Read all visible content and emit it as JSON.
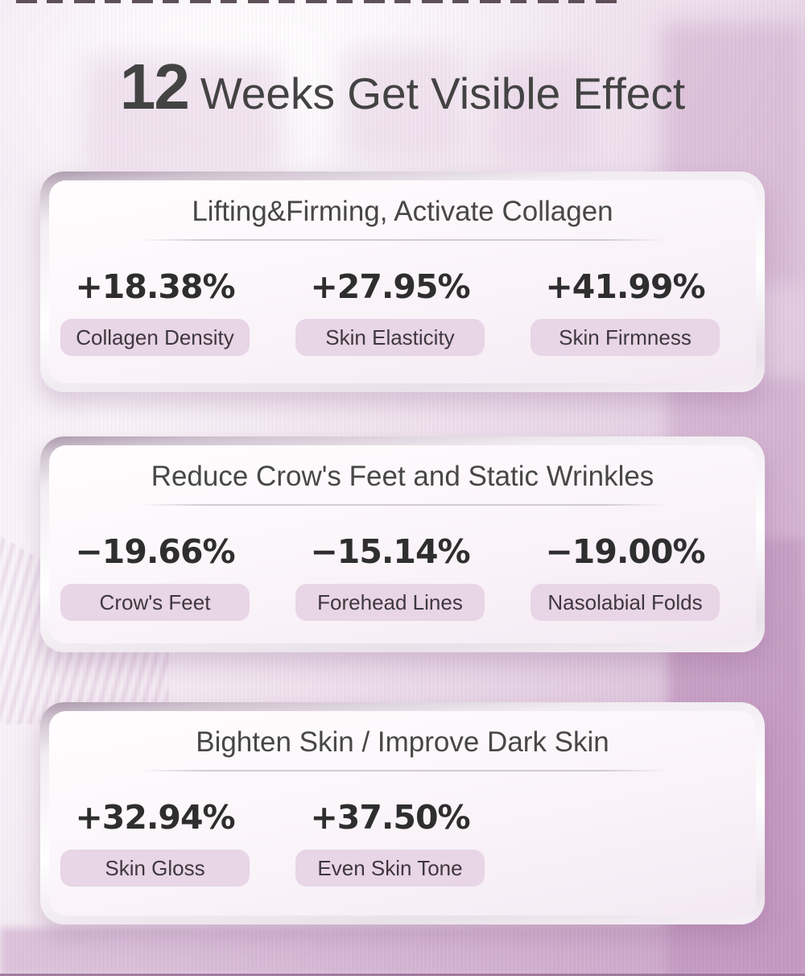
{
  "title": {
    "number": "12",
    "text": "Weeks Get Visible Effect"
  },
  "cards": [
    {
      "title": "Lifting&Firming, Activate Collagen",
      "stats": [
        {
          "value": "+18.38%",
          "label": "Collagen Density"
        },
        {
          "value": "+27.95%",
          "label": "Skin Elasticity"
        },
        {
          "value": "+41.99%",
          "label": "Skin Firmness"
        }
      ]
    },
    {
      "title": "Reduce Crow's Feet and Static Wrinkles",
      "stats": [
        {
          "value": "−19.66%",
          "label": "Crow's Feet"
        },
        {
          "value": "−15.14%",
          "label": "Forehead Lines"
        },
        {
          "value": "−19.00%",
          "label": "Nasolabial Folds"
        }
      ]
    },
    {
      "title": "Bighten Skin / Improve Dark Skin",
      "stats": [
        {
          "value": "+32.94%",
          "label": "Skin Gloss"
        },
        {
          "value": "+37.50%",
          "label": "Even Skin Tone"
        }
      ]
    }
  ],
  "colors": {
    "background_base": "#efe3ee",
    "background_deep": "#d0abce",
    "card_background": "#faf4f9",
    "card_ring": "#b2a0b2",
    "pill_background": "#e8d5e6",
    "text_primary": "#434343",
    "text_value": "#2e2e2e",
    "top_dash": "#4a3a42"
  }
}
